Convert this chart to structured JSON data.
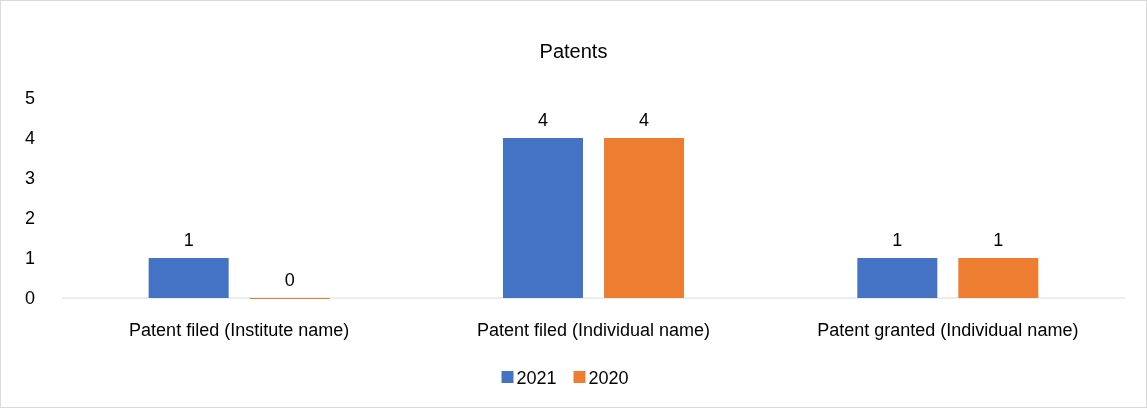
{
  "chart_data": {
    "type": "bar",
    "title": "Patents",
    "categories": [
      "Patent filed (Institute name)",
      "Patent filed (Individual name)",
      "Patent granted (Individual name)"
    ],
    "series": [
      {
        "name": "2021",
        "color": "#4472c4",
        "values": [
          1,
          4,
          1
        ]
      },
      {
        "name": "2020",
        "color": "#ed7d31",
        "values": [
          0,
          4,
          1
        ]
      }
    ],
    "ylim": [
      0,
      5
    ],
    "yticks": [
      0,
      1,
      2,
      3,
      4,
      5
    ],
    "data_labels": true,
    "legend": "bottom"
  }
}
